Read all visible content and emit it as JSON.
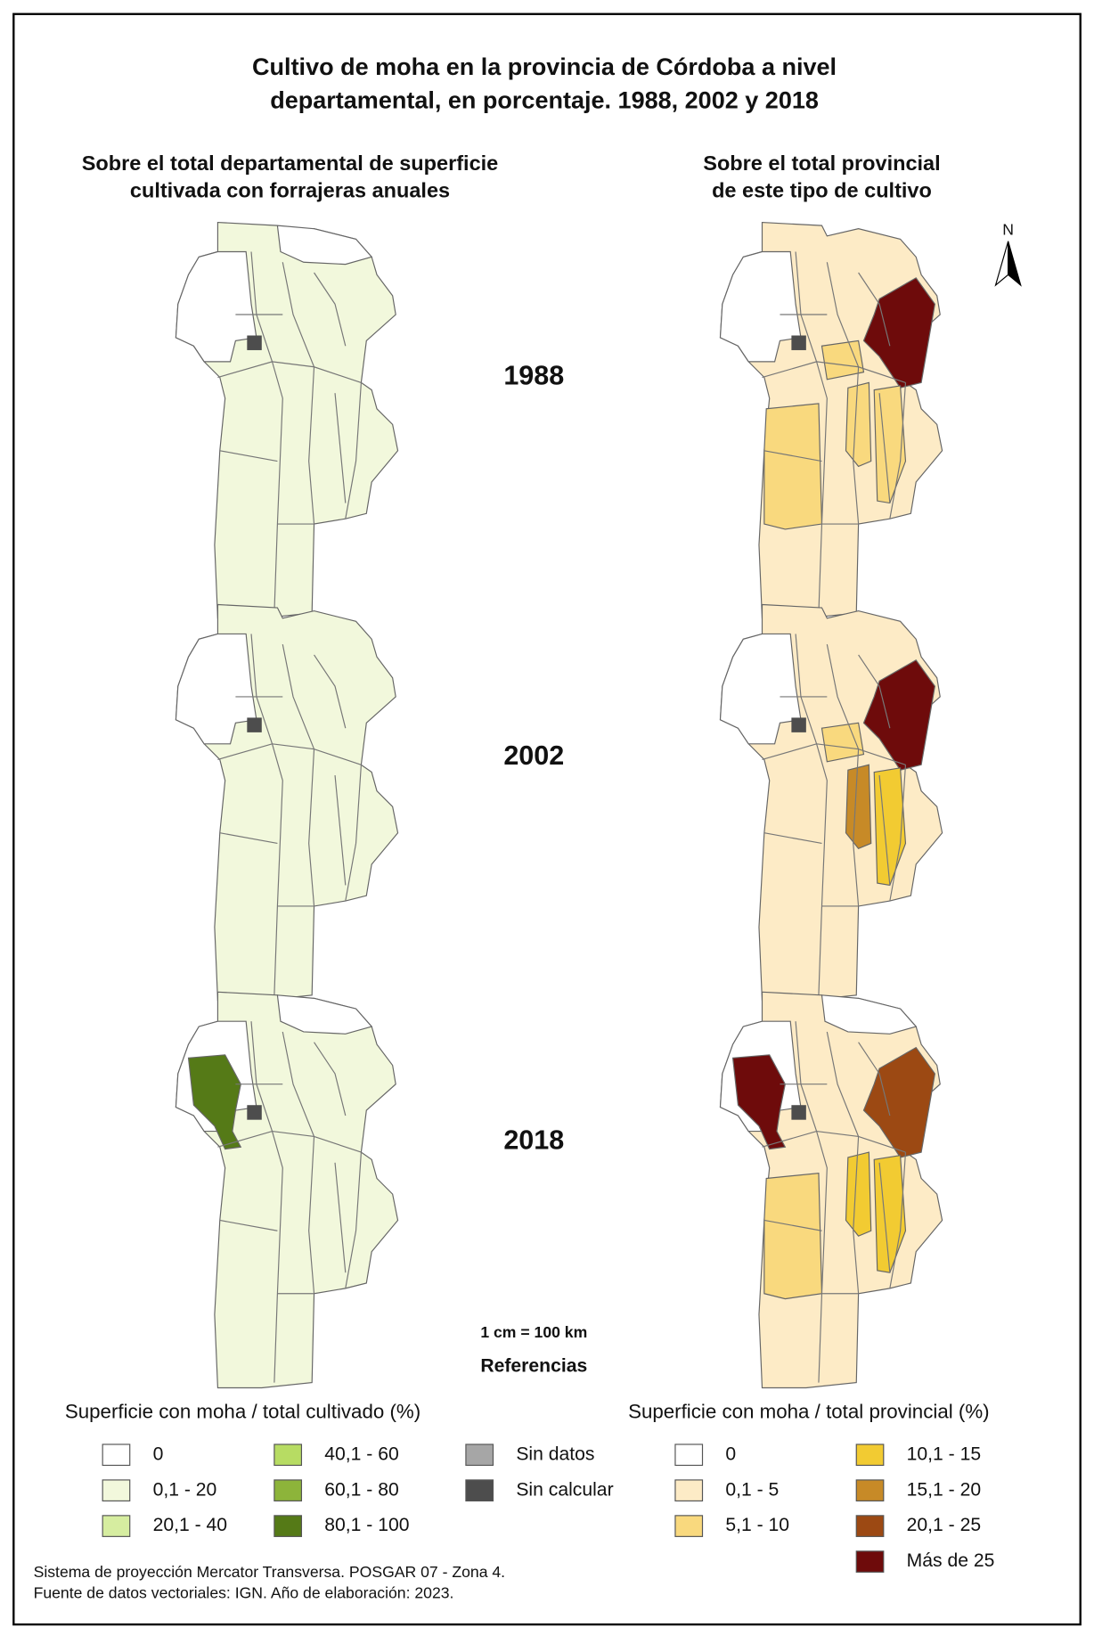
{
  "title": [
    "Cultivo de moha en la provincia de Córdoba a nivel",
    "departamental, en porcentaje. 1988, 2002 y 2018"
  ],
  "columns": [
    [
      "Sobre el total departamental de superficie",
      "cultivada con forrajeras anuales"
    ],
    [
      "Sobre el total provincial",
      "de este tipo de cultivo"
    ]
  ],
  "years": [
    "1988",
    "2002",
    "2018"
  ],
  "north": "N",
  "scale": "1 cm = 100 km",
  "legend_heading": "Referencias",
  "legend_left": {
    "title": "Superficie con moha / total cultivado (%)",
    "items": [
      {
        "label": "0",
        "color": "#ffffff"
      },
      {
        "label": "0,1 - 20",
        "color": "#f2f8dc"
      },
      {
        "label": "20,1 - 40",
        "color": "#d6eda0"
      },
      {
        "label": "40,1 - 60",
        "color": "#b7dc63"
      },
      {
        "label": "60,1 - 80",
        "color": "#8db43a"
      },
      {
        "label": "80,1 - 100",
        "color": "#557a17"
      },
      {
        "label": "Sin datos",
        "color": "#a6a6a6"
      },
      {
        "label": "Sin calcular",
        "color": "#4d4d4d"
      }
    ]
  },
  "legend_right": {
    "title": "Superficie con moha / total provincial (%)",
    "items": [
      {
        "label": "0",
        "color": "#ffffff"
      },
      {
        "label": "0,1 - 5",
        "color": "#fdebc6"
      },
      {
        "label": "5,1 - 10",
        "color": "#f9d97e"
      },
      {
        "label": "10,1 - 15",
        "color": "#f2cb32"
      },
      {
        "label": "15,1 - 20",
        "color": "#c78a27"
      },
      {
        "label": "20,1 - 25",
        "color": "#9c4913"
      },
      {
        "label": "Más de 25",
        "color": "#6e0b0b"
      }
    ]
  },
  "footer": [
    "Sistema de proyección Mercator Transversa. POSGAR 07 - Zona 4.",
    "Fuente de datos vectoriales: IGN. Año de elaboración: 2023."
  ]
}
